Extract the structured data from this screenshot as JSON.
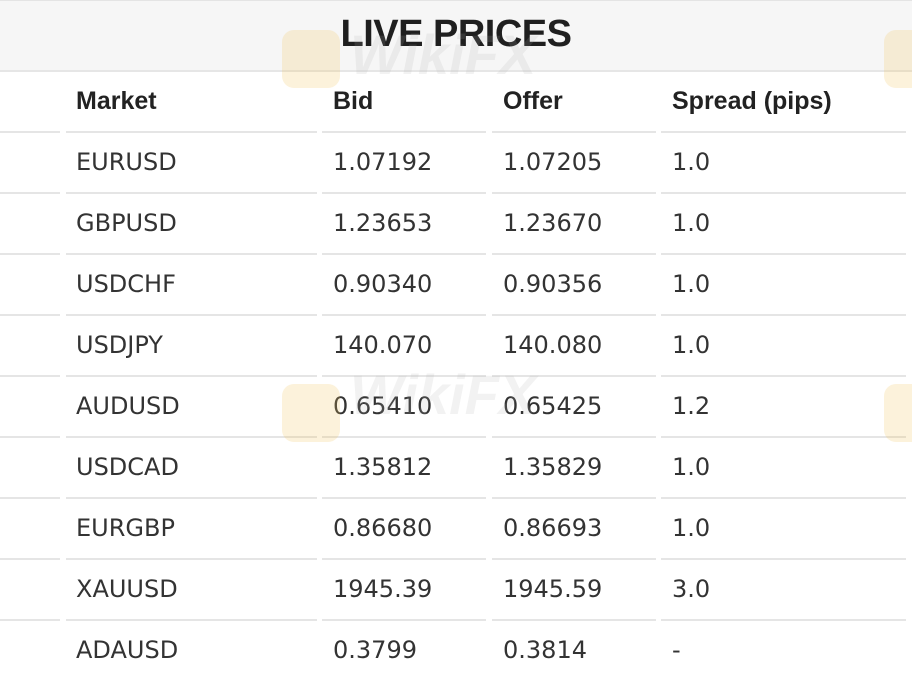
{
  "title": "LIVE PRICES",
  "watermark": "WikiFX",
  "table": {
    "headers": [
      "Market",
      "Bid",
      "Offer",
      "Spread (pips)"
    ],
    "rows": [
      {
        "market": "EURUSD",
        "bid": "1.07192",
        "offer": "1.07205",
        "spread": "1.0"
      },
      {
        "market": "GBPUSD",
        "bid": "1.23653",
        "offer": "1.23670",
        "spread": "1.0"
      },
      {
        "market": "USDCHF",
        "bid": "0.90340",
        "offer": "0.90356",
        "spread": "1.0"
      },
      {
        "market": "USDJPY",
        "bid": "140.070",
        "offer": "140.080",
        "spread": "1.0"
      },
      {
        "market": "AUDUSD",
        "bid": "0.65410",
        "offer": "0.65425",
        "spread": "1.2"
      },
      {
        "market": "USDCAD",
        "bid": "1.35812",
        "offer": "1.35829",
        "spread": "1.0"
      },
      {
        "market": "EURGBP",
        "bid": "0.86680",
        "offer": "0.86693",
        "spread": "1.0"
      },
      {
        "market": "XAUUSD",
        "bid": "1945.39",
        "offer": "1945.59",
        "spread": "3.0"
      },
      {
        "market": "ADAUSD",
        "bid": "0.3799",
        "offer": "0.3814",
        "spread": "-"
      }
    ]
  }
}
